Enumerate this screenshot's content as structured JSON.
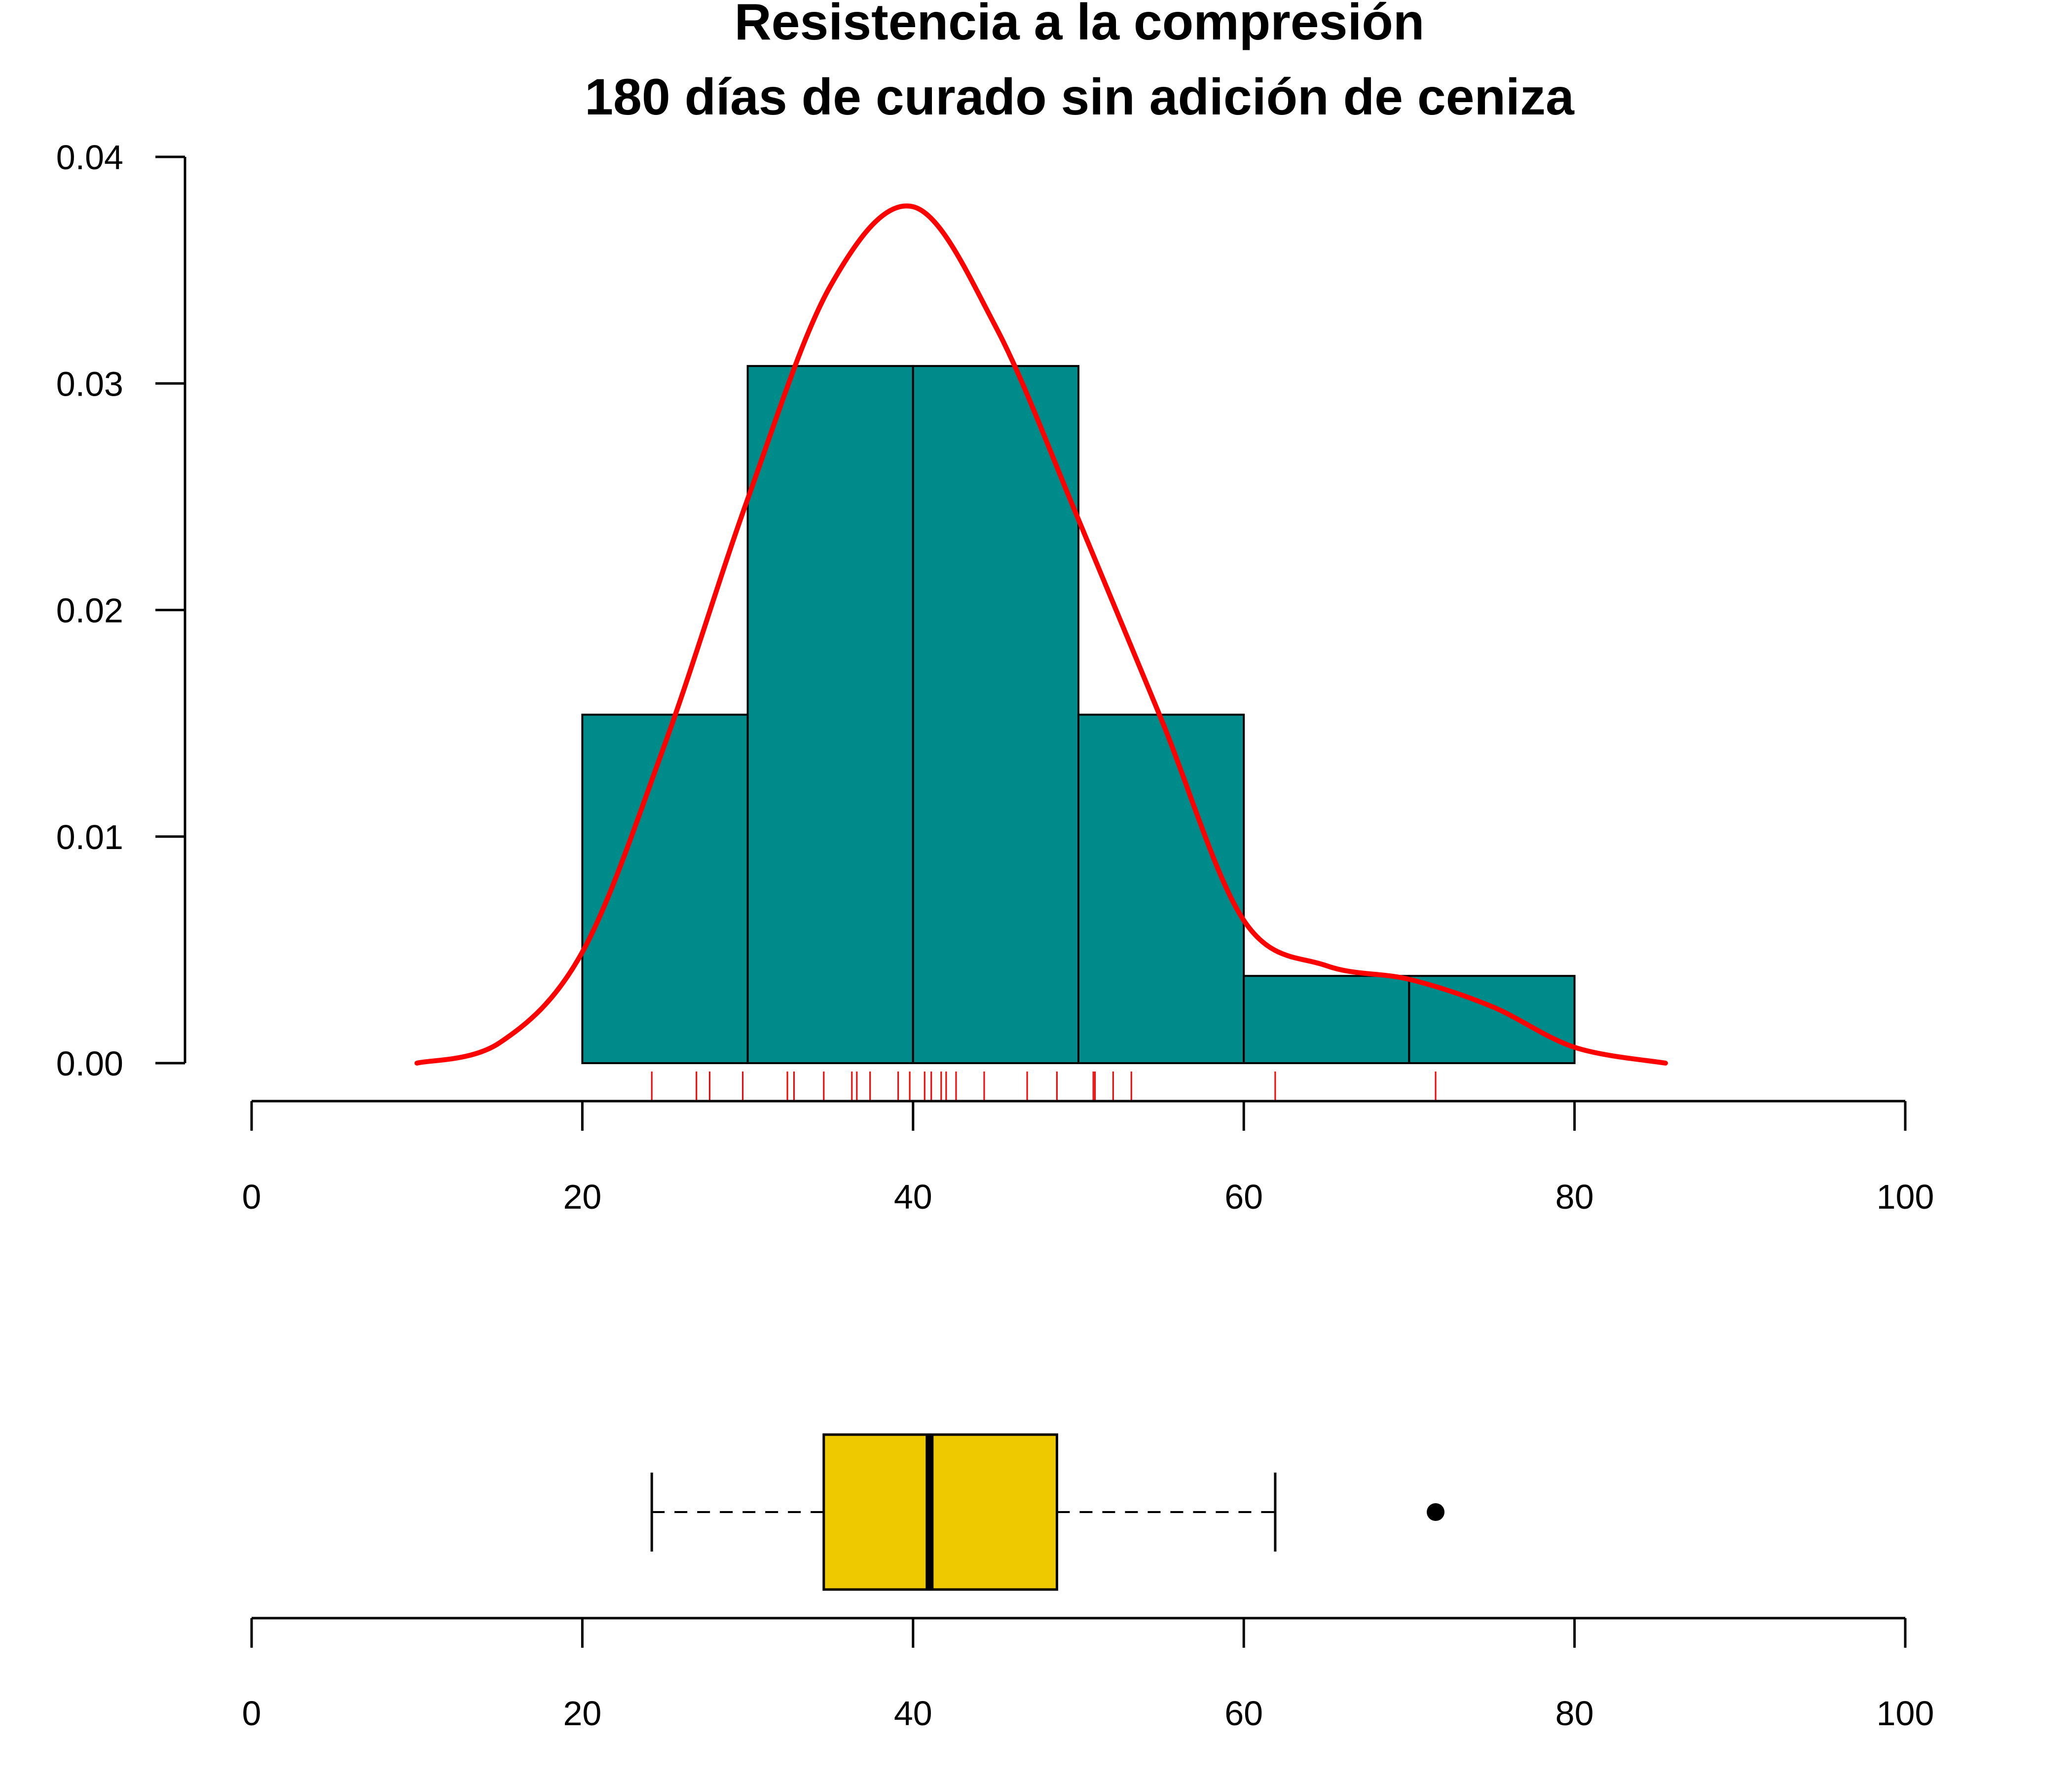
{
  "chart_data": [
    {
      "type": "histogram",
      "title": "Resistencia a la compresión",
      "subtitle": "180 días de curado sin adición de ceniza",
      "xlabel": "",
      "ylabel": "",
      "bins": [
        [
          20,
          30
        ],
        [
          30,
          40
        ],
        [
          40,
          50
        ],
        [
          50,
          60
        ],
        [
          60,
          70
        ],
        [
          70,
          80
        ]
      ],
      "density": [
        0.01538,
        0.03077,
        0.03077,
        0.01538,
        0.00385,
        0.00385
      ],
      "bar_color": "#008B8B",
      "xlim": [
        0,
        100
      ],
      "ylim": [
        0,
        0.04
      ],
      "x_ticks": [
        "0",
        "20",
        "40",
        "60",
        "80",
        "100"
      ],
      "y_ticks": [
        "0.00",
        "0.01",
        "0.02",
        "0.03",
        "0.04"
      ],
      "grid": false,
      "density_curve": {
        "color": "#FF0000",
        "x": [
          10,
          15,
          20,
          25,
          30,
          35,
          40,
          45,
          50,
          55,
          60,
          65,
          70,
          75,
          80,
          85.5
        ],
        "y": [
          0,
          0.0009,
          0.0049,
          0.0141,
          0.0249,
          0.0343,
          0.0378,
          0.0325,
          0.024,
          0.0152,
          0.0063,
          0.0043,
          0.0037,
          0.0025,
          0.0007,
          0
        ]
      },
      "rug": {
        "color": "#FF0000",
        "values": [
          24.2,
          26.9,
          27.7,
          29.7,
          32.4,
          32.8,
          34.6,
          36.3,
          36.6,
          37.4,
          39.1,
          39.8,
          40.7,
          41.1,
          41.7,
          42.0,
          42.6,
          44.3,
          46.9,
          48.7,
          50.9,
          51.0,
          52.1,
          53.2,
          61.9,
          71.6
        ]
      }
    },
    {
      "type": "boxplot",
      "box_color": "#EEC900",
      "whisker_low": 24.2,
      "q1": 34.6,
      "median": 41.0,
      "q3": 48.7,
      "whisker_high": 61.9,
      "outliers": [
        71.6
      ],
      "xlim": [
        0,
        100
      ],
      "x_ticks": [
        "0",
        "20",
        "40",
        "60",
        "80",
        "100"
      ]
    }
  ]
}
